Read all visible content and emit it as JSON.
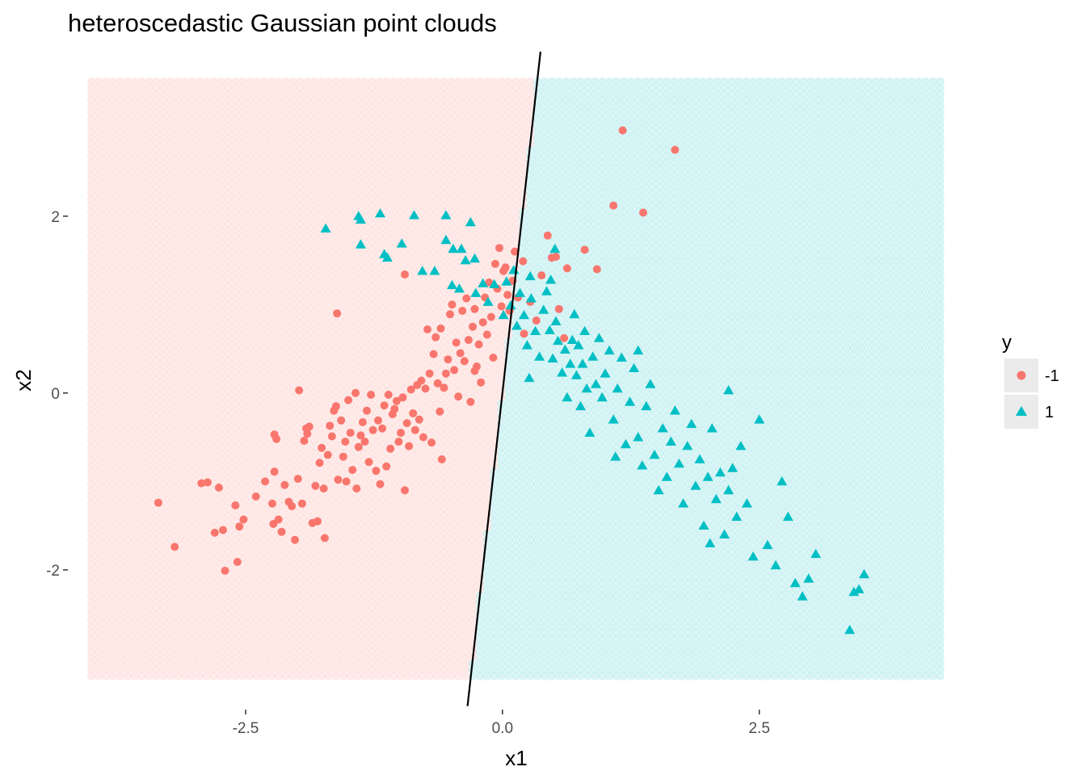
{
  "chart_data": {
    "type": "scatter",
    "title": "heteroscedastic Gaussian point clouds",
    "xlabel": "x1",
    "ylabel": "x2",
    "xlim": [
      -4.23,
      4.5
    ],
    "ylim": [
      -3.58,
      3.86
    ],
    "x_ticks": [
      -2.5,
      0.0,
      2.5
    ],
    "x_tick_labels": [
      "-2.5",
      "0.0",
      "2.5"
    ],
    "y_ticks": [
      -2,
      0,
      2
    ],
    "y_tick_labels": [
      "-2",
      "0",
      "2"
    ],
    "grid": false,
    "background": {
      "type": "classification-grid",
      "x_range": [
        -4.0,
        4.3
      ],
      "y_range": [
        -3.2,
        3.55
      ],
      "step": 0.07,
      "colors": {
        "-1": "#f8766d",
        "1": "#00bfc4"
      },
      "opacity": 0.15
    },
    "decision_boundary": {
      "type": "line",
      "points": [
        [
          -0.34,
          -3.54
        ],
        [
          0.37,
          3.86
        ]
      ],
      "color": "#000000"
    },
    "legend": {
      "title": "y",
      "placement": "right",
      "entries": [
        {
          "label": "-1",
          "shape": "circle",
          "color": "#f8766d"
        },
        {
          "label": "1",
          "shape": "triangle",
          "color": "#00bfc4"
        }
      ]
    },
    "series": [
      {
        "name": "-1",
        "shape": "circle",
        "color": "#f8766d",
        "points": [
          [
            -3.35,
            -1.24
          ],
          [
            -3.19,
            -1.74
          ],
          [
            -2.93,
            -1.02
          ],
          [
            -2.87,
            -1.01
          ],
          [
            -2.8,
            -1.58
          ],
          [
            -2.76,
            -1.07
          ],
          [
            -2.72,
            -1.55
          ],
          [
            -2.7,
            -2.01
          ],
          [
            -2.6,
            -1.27
          ],
          [
            -2.58,
            -1.91
          ],
          [
            -2.56,
            -1.51
          ],
          [
            -2.52,
            -1.43
          ],
          [
            -2.4,
            -1.17
          ],
          [
            -2.31,
            -1.0
          ],
          [
            -2.24,
            -1.25
          ],
          [
            -2.23,
            -1.48
          ],
          [
            -2.22,
            -0.47
          ],
          [
            -2.22,
            -0.89
          ],
          [
            -2.2,
            -0.52
          ],
          [
            -2.18,
            -1.43
          ],
          [
            -2.15,
            -1.57
          ],
          [
            -2.12,
            -1.04
          ],
          [
            -2.08,
            -1.23
          ],
          [
            -2.05,
            -1.28
          ],
          [
            -2.02,
            -1.66
          ],
          [
            -1.99,
            -0.97
          ],
          [
            -1.98,
            0.03
          ],
          [
            -1.95,
            -1.25
          ],
          [
            -1.93,
            -0.54
          ],
          [
            -1.91,
            -0.4
          ],
          [
            -1.9,
            -0.46
          ],
          [
            -1.88,
            -0.38
          ],
          [
            -1.85,
            -1.47
          ],
          [
            -1.82,
            -1.05
          ],
          [
            -1.8,
            -1.45
          ],
          [
            -1.78,
            -0.79
          ],
          [
            -1.76,
            -0.62
          ],
          [
            -1.74,
            -1.08
          ],
          [
            -1.73,
            -1.64
          ],
          [
            -1.7,
            -0.7
          ],
          [
            -1.68,
            -0.37
          ],
          [
            -1.66,
            -0.49
          ],
          [
            -1.64,
            -0.2
          ],
          [
            -1.62,
            -0.15
          ],
          [
            -1.6,
            -0.98
          ],
          [
            -1.57,
            -0.31
          ],
          [
            -1.55,
            -0.72
          ],
          [
            -1.53,
            -0.55
          ],
          [
            -1.52,
            -1.0
          ],
          [
            -1.5,
            -0.08
          ],
          [
            -1.48,
            -0.45
          ],
          [
            -1.46,
            -0.87
          ],
          [
            -1.43,
            0.0
          ],
          [
            -1.42,
            -1.08
          ],
          [
            -1.4,
            -0.61
          ],
          [
            -1.38,
            -0.48
          ],
          [
            -1.36,
            -0.33
          ],
          [
            -1.34,
            -0.55
          ],
          [
            -1.32,
            -0.2
          ],
          [
            -1.3,
            -0.78
          ],
          [
            -1.28,
            -0.02
          ],
          [
            -1.26,
            -0.42
          ],
          [
            -1.23,
            -0.88
          ],
          [
            -1.21,
            -0.31
          ],
          [
            -1.19,
            -1.03
          ],
          [
            -1.17,
            -0.4
          ],
          [
            -1.15,
            -0.14
          ],
          [
            -1.13,
            -0.83
          ],
          [
            -1.11,
            -0.02
          ],
          [
            -1.09,
            -0.63
          ],
          [
            -1.07,
            -0.24
          ],
          [
            -1.05,
            -0.18
          ],
          [
            -1.03,
            -0.09
          ],
          [
            -1.01,
            -0.55
          ],
          [
            -0.99,
            -0.45
          ],
          [
            -0.97,
            -0.05
          ],
          [
            -0.95,
            -1.1
          ],
          [
            -0.93,
            -0.34
          ],
          [
            -0.91,
            -0.6
          ],
          [
            -0.89,
            0.04
          ],
          [
            -0.87,
            -0.23
          ],
          [
            -0.85,
            -0.42
          ],
          [
            -0.83,
            0.09
          ],
          [
            -0.81,
            -0.3
          ],
          [
            -0.79,
            0.14
          ],
          [
            -0.77,
            -0.5
          ],
          [
            -0.75,
            0.05
          ],
          [
            -0.73,
            0.72
          ],
          [
            -0.71,
            0.22
          ],
          [
            -0.69,
            -0.56
          ],
          [
            -0.67,
            0.44
          ],
          [
            -0.65,
            0.63
          ],
          [
            -0.63,
            0.11
          ],
          [
            -0.61,
            -0.21
          ],
          [
            -0.59,
            -0.75
          ],
          [
            -0.57,
            0.06
          ],
          [
            -0.55,
            0.22
          ],
          [
            -0.53,
            0.38
          ],
          [
            -0.51,
            0.89
          ],
          [
            -0.49,
            1.0
          ],
          [
            -0.47,
            0.26
          ],
          [
            -0.45,
            0.57
          ],
          [
            -0.43,
            -0.04
          ],
          [
            -0.41,
            0.45
          ],
          [
            -0.39,
            0.93
          ],
          [
            -0.37,
            0.36
          ],
          [
            -0.35,
            1.07
          ],
          [
            -0.33,
            0.6
          ],
          [
            -0.31,
            -0.1
          ],
          [
            -0.29,
            0.75
          ],
          [
            -0.27,
            0.95
          ],
          [
            -0.25,
            0.3
          ],
          [
            -0.23,
            0.55
          ],
          [
            -0.21,
            0.12
          ],
          [
            -0.19,
            0.8
          ],
          [
            -0.17,
            1.08
          ],
          [
            -0.15,
            0.66
          ],
          [
            -0.13,
            1.25
          ],
          [
            -0.11,
            0.86
          ],
          [
            -0.09,
            0.4
          ],
          [
            -0.07,
            1.46
          ],
          [
            -0.05,
            1.18
          ],
          [
            -0.03,
            1.64
          ],
          [
            -0.01,
            0.98
          ],
          [
            0.01,
            1.38
          ],
          [
            0.03,
            1.42
          ],
          [
            0.05,
            1.11
          ],
          [
            0.07,
            0.93
          ],
          [
            0.1,
            1.27
          ],
          [
            0.12,
            1.6
          ],
          [
            0.15,
            1.08
          ],
          [
            0.2,
            1.49
          ],
          [
            0.27,
            1.03
          ],
          [
            0.33,
            0.82
          ],
          [
            0.38,
            1.33
          ],
          [
            0.44,
            1.78
          ],
          [
            0.48,
            1.53
          ],
          [
            0.52,
            1.54
          ],
          [
            0.55,
            0.95
          ],
          [
            0.6,
            0.62
          ],
          [
            0.63,
            1.41
          ],
          [
            0.8,
            1.62
          ],
          [
            0.92,
            1.4
          ],
          [
            1.08,
            2.12
          ],
          [
            1.17,
            2.97
          ],
          [
            1.37,
            2.04
          ],
          [
            1.68,
            2.75
          ],
          [
            -0.27,
            0.25
          ],
          [
            -0.95,
            1.34
          ],
          [
            -1.61,
            0.9
          ],
          [
            -0.6,
            0.73
          ],
          [
            0.21,
            0.67
          ]
        ]
      },
      {
        "name": "1",
        "shape": "triangle",
        "color": "#00bfc4",
        "points": [
          [
            -1.72,
            1.86
          ],
          [
            -1.4,
            2.0
          ],
          [
            -1.38,
            1.96
          ],
          [
            -1.38,
            1.68
          ],
          [
            -1.19,
            2.03
          ],
          [
            -1.15,
            1.57
          ],
          [
            -1.12,
            1.53
          ],
          [
            -0.98,
            1.69
          ],
          [
            -0.86,
            2.01
          ],
          [
            -0.78,
            1.38
          ],
          [
            -0.66,
            1.38
          ],
          [
            -0.55,
            2.01
          ],
          [
            -0.55,
            1.73
          ],
          [
            -0.48,
            1.63
          ],
          [
            -0.4,
            1.63
          ],
          [
            -0.36,
            1.5
          ],
          [
            -0.31,
            1.93
          ],
          [
            -0.27,
            1.52
          ],
          [
            -0.49,
            1.22
          ],
          [
            -0.42,
            1.18
          ],
          [
            -0.19,
            1.24
          ],
          [
            -0.14,
            1.03
          ],
          [
            -0.08,
            1.23
          ],
          [
            0.01,
            0.88
          ],
          [
            0.04,
            1.26
          ],
          [
            0.08,
            0.99
          ],
          [
            0.11,
            1.39
          ],
          [
            0.14,
            0.76
          ],
          [
            0.17,
            1.13
          ],
          [
            0.21,
            0.88
          ],
          [
            0.24,
            0.54
          ],
          [
            0.26,
            0.17
          ],
          [
            0.28,
            1.07
          ],
          [
            0.32,
            0.7
          ],
          [
            0.36,
            0.41
          ],
          [
            0.4,
            0.94
          ],
          [
            0.43,
            1.15
          ],
          [
            0.46,
            0.71
          ],
          [
            0.49,
            0.39
          ],
          [
            0.52,
            0.81
          ],
          [
            0.54,
            0.59
          ],
          [
            0.58,
            0.23
          ],
          [
            0.61,
            0.49
          ],
          [
            0.63,
            -0.05
          ],
          [
            0.66,
            0.33
          ],
          [
            0.68,
            0.6
          ],
          [
            0.7,
            0.89
          ],
          [
            0.72,
            0.2
          ],
          [
            0.74,
            0.54
          ],
          [
            0.76,
            -0.15
          ],
          [
            0.78,
            0.33
          ],
          [
            0.8,
            0.7
          ],
          [
            0.82,
            0.05
          ],
          [
            0.85,
            -0.45
          ],
          [
            0.88,
            0.41
          ],
          [
            0.91,
            0.1
          ],
          [
            0.94,
            0.62
          ],
          [
            0.97,
            -0.05
          ],
          [
            1.0,
            0.22
          ],
          [
            1.04,
            0.48
          ],
          [
            1.08,
            -0.3
          ],
          [
            1.12,
            0.05
          ],
          [
            1.16,
            0.4
          ],
          [
            1.2,
            -0.58
          ],
          [
            1.24,
            -0.1
          ],
          [
            1.28,
            0.28
          ],
          [
            1.32,
            -0.5
          ],
          [
            1.36,
            -0.82
          ],
          [
            1.4,
            -0.15
          ],
          [
            1.44,
            0.1
          ],
          [
            1.48,
            -0.7
          ],
          [
            1.52,
            -1.1
          ],
          [
            1.56,
            -0.4
          ],
          [
            1.6,
            -0.95
          ],
          [
            1.64,
            -0.55
          ],
          [
            1.68,
            -0.2
          ],
          [
            1.72,
            -0.8
          ],
          [
            1.76,
            -1.25
          ],
          [
            1.8,
            -0.6
          ],
          [
            1.84,
            -0.35
          ],
          [
            1.88,
            -1.05
          ],
          [
            1.92,
            -0.75
          ],
          [
            1.96,
            -1.5
          ],
          [
            2.0,
            -0.95
          ],
          [
            2.04,
            -0.4
          ],
          [
            2.08,
            -1.2
          ],
          [
            2.12,
            -0.9
          ],
          [
            2.16,
            -1.6
          ],
          [
            2.2,
            -1.1
          ],
          [
            2.24,
            -0.85
          ],
          [
            2.28,
            -1.4
          ],
          [
            2.32,
            -0.6
          ],
          [
            2.38,
            -1.25
          ],
          [
            2.44,
            -1.85
          ],
          [
            2.5,
            -0.3
          ],
          [
            2.58,
            -1.72
          ],
          [
            2.66,
            -1.95
          ],
          [
            2.72,
            -1.0
          ],
          [
            2.78,
            -1.4
          ],
          [
            2.85,
            -2.15
          ],
          [
            2.92,
            -2.3
          ],
          [
            2.98,
            -2.1
          ],
          [
            3.05,
            -1.82
          ],
          [
            3.38,
            -2.68
          ],
          [
            3.42,
            -2.25
          ],
          [
            3.47,
            -2.22
          ],
          [
            3.52,
            -2.05
          ],
          [
            2.2,
            0.03
          ],
          [
            2.02,
            -1.7
          ],
          [
            1.32,
            0.48
          ],
          [
            1.1,
            -0.72
          ],
          [
            0.47,
            1.28
          ],
          [
            0.51,
            1.63
          ],
          [
            -0.26,
            1.13
          ],
          [
            0.27,
            1.32
          ]
        ]
      }
    ]
  }
}
